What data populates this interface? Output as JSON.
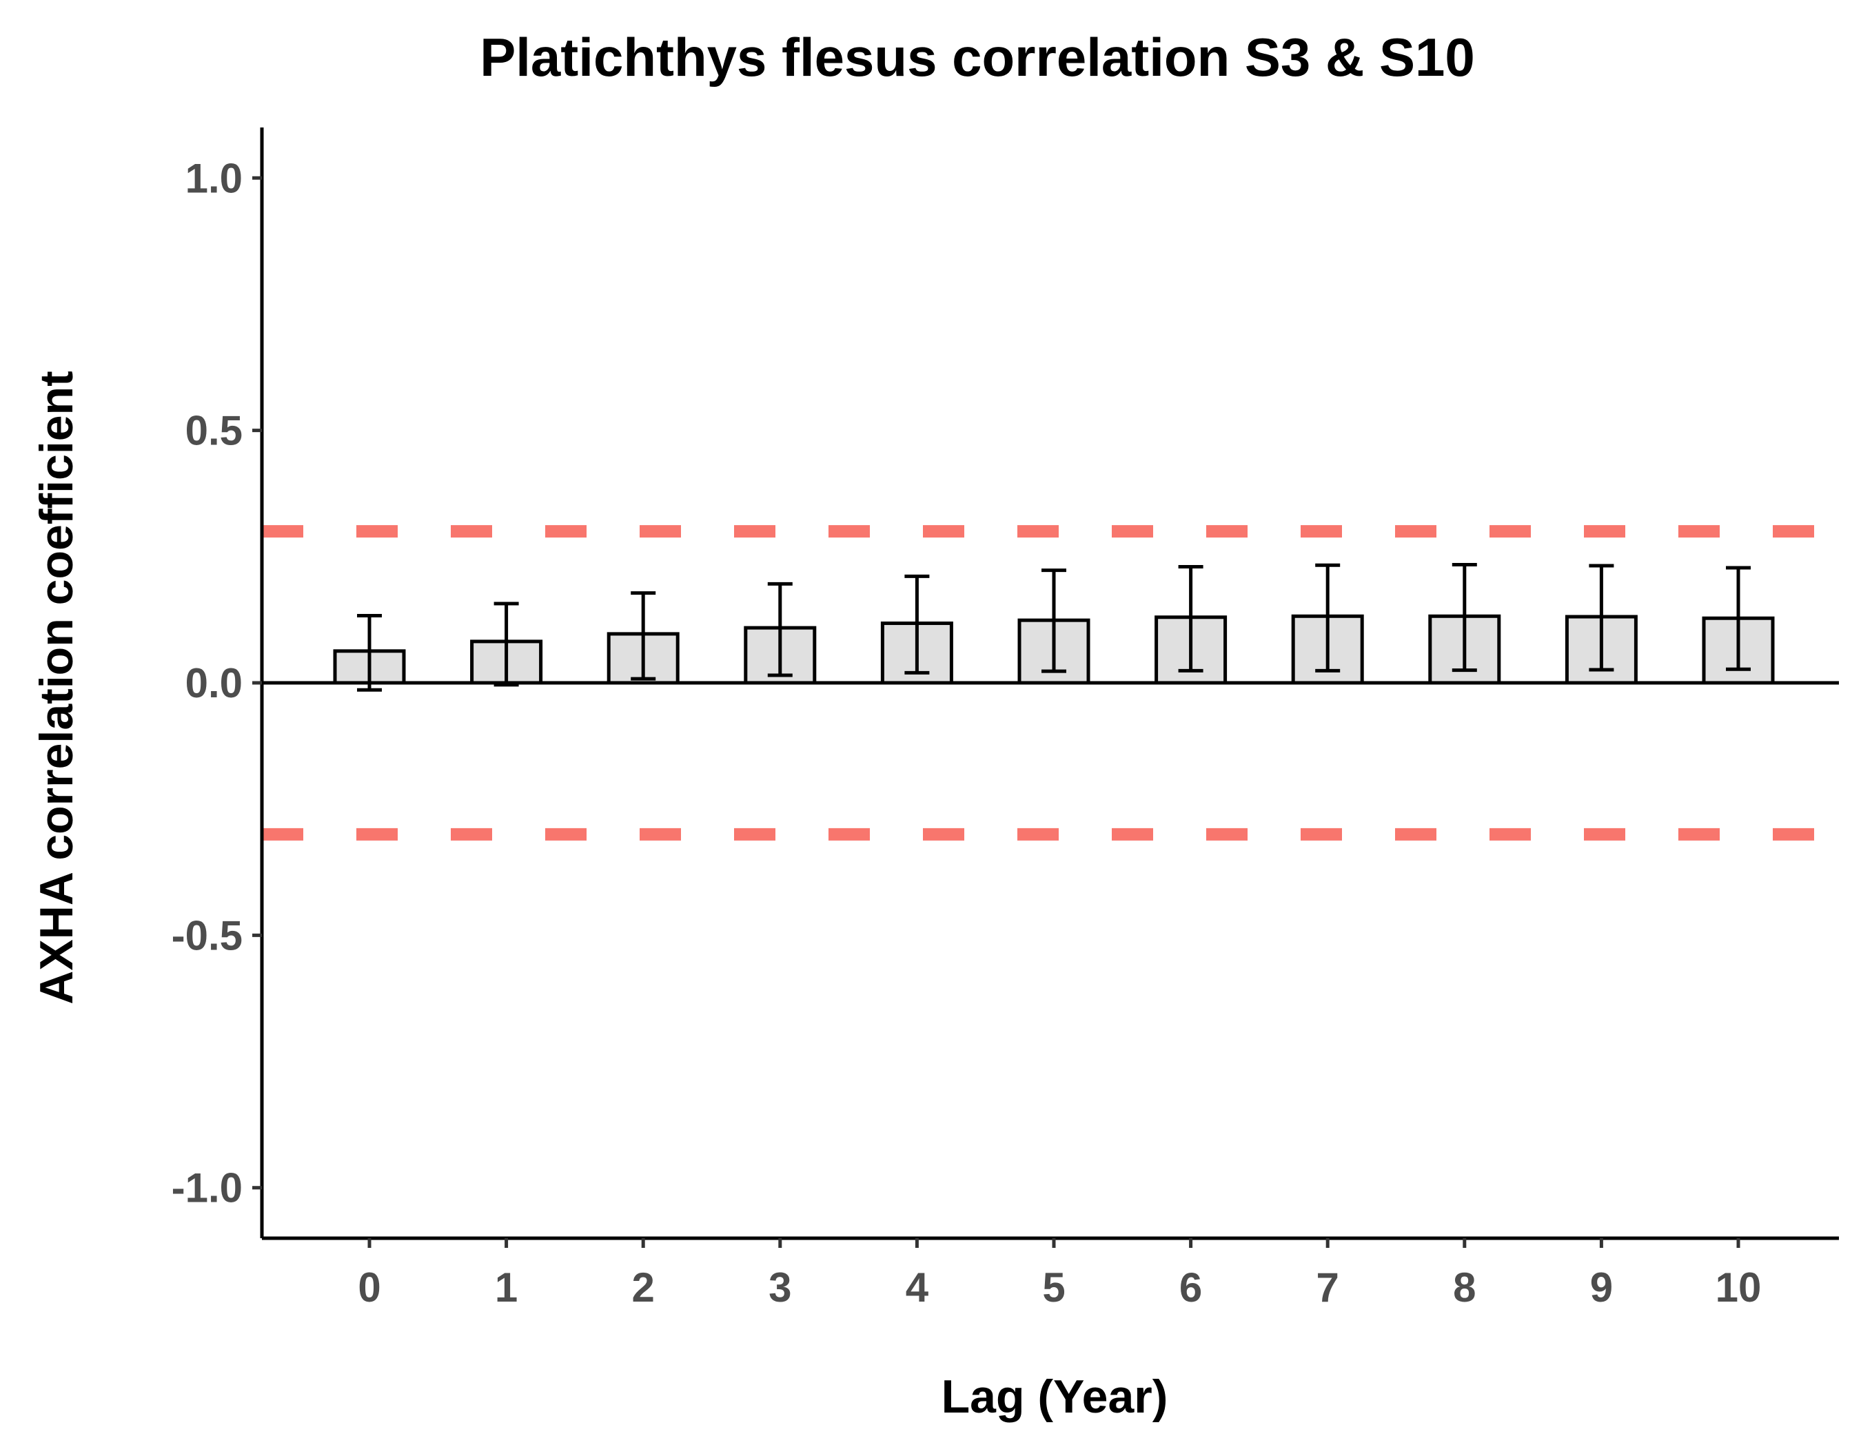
{
  "chart_data": {
    "type": "bar",
    "title": "Platichthys flesus correlation S3 & S10",
    "xlabel": "Lag (Year)",
    "ylabel": "AXHA correlation coefficient",
    "categories": [
      "0",
      "1",
      "2",
      "3",
      "4",
      "5",
      "6",
      "7",
      "8",
      "9",
      "10"
    ],
    "values": [
      0.063,
      0.082,
      0.097,
      0.109,
      0.118,
      0.124,
      0.13,
      0.132,
      0.132,
      0.131,
      0.128
    ],
    "error_lower": [
      -0.014,
      -0.004,
      0.008,
      0.015,
      0.02,
      0.023,
      0.024,
      0.024,
      0.025,
      0.026,
      0.027
    ],
    "error_upper": [
      0.133,
      0.157,
      0.178,
      0.196,
      0.211,
      0.223,
      0.23,
      0.233,
      0.234,
      0.232,
      0.228
    ],
    "ylim": [
      -1.1,
      1.1
    ],
    "yticks": [
      -1.0,
      -0.5,
      0.0,
      0.5,
      1.0
    ],
    "ytick_labels": [
      "-1.0",
      "-0.5",
      "0.0",
      "0.5",
      "1.0"
    ],
    "threshold_lines": [
      0.3,
      -0.3
    ],
    "grid": false,
    "bar_fill": "#e0e0e0",
    "bar_stroke": "#000000",
    "threshold_color": "#f8766d"
  }
}
